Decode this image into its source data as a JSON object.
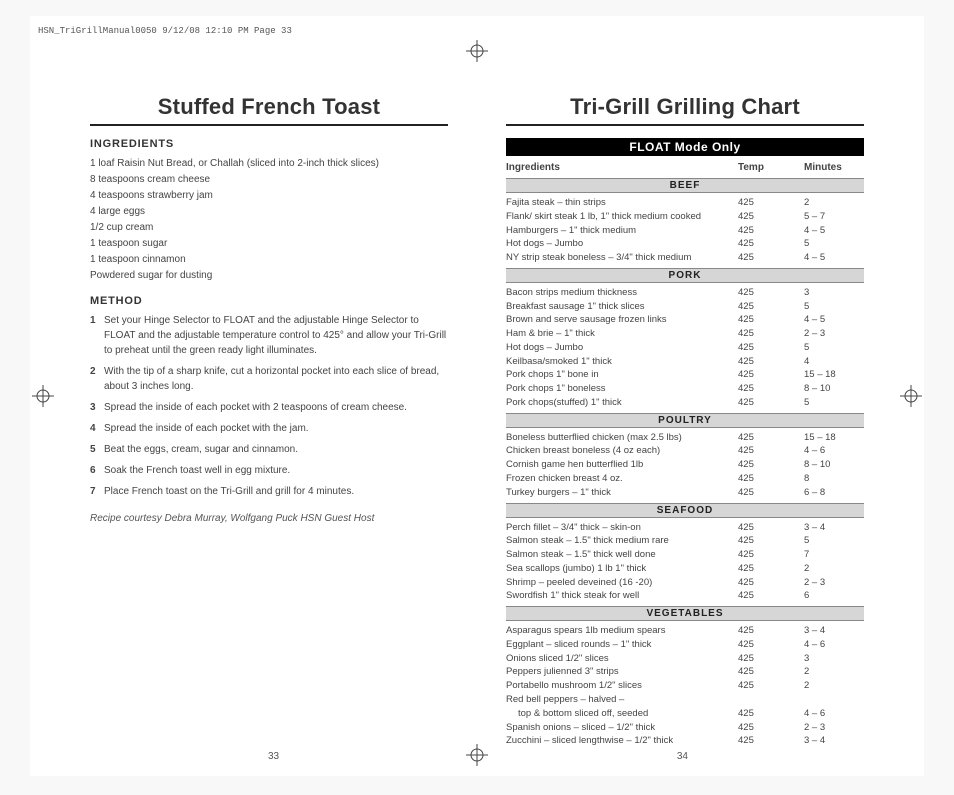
{
  "header_strip": "HSN_TriGrillManual0050  9/12/08  12:10 PM  Page 33",
  "left": {
    "title": "Stuffed French Toast",
    "ing_label": "INGREDIENTS",
    "ingredients": [
      "1 loaf Raisin Nut Bread, or Challah (sliced into 2-inch thick slices)",
      "8 teaspoons cream cheese",
      "4 teaspoons strawberry jam",
      "4 large eggs",
      "1/2 cup cream",
      "1 teaspoon sugar",
      "1 teaspoon cinnamon",
      "Powdered sugar for dusting"
    ],
    "method_label": "METHOD",
    "method": [
      "Set your Hinge Selector to FLOAT and the adjustable Hinge Selector to FLOAT and the adjustable temperature control to 425° and allow your Tri-Grill to preheat until the green ready light illuminates.",
      "With the tip of a sharp knife, cut a horizontal pocket into each slice of bread, about 3 inches long.",
      "Spread the inside of each pocket with 2 teaspoons of cream cheese.",
      "Spread the inside of each pocket with the jam.",
      "Beat the eggs, cream, sugar and cinnamon.",
      "Soak the French toast well in egg mixture.",
      "Place French toast on the Tri-Grill and grill for 4 minutes."
    ],
    "credit": "Recipe courtesy Debra Murray, Wolfgang Puck HSN Guest Host",
    "page_num": "33"
  },
  "right": {
    "title": "Tri-Grill Grilling Chart",
    "float_bar": "FLOAT Mode Only",
    "col_labels": {
      "c1": "Ingredients",
      "c2": "Temp",
      "c3": "Minutes"
    },
    "sections": [
      {
        "name": "BEEF",
        "rows": [
          {
            "n": "Fajita steak – thin strips",
            "t": "425",
            "m": "2"
          },
          {
            "n": "Flank/ skirt steak 1 lb, 1\" thick medium cooked",
            "t": "425",
            "m": "5 – 7"
          },
          {
            "n": "Hamburgers – 1\" thick  medium",
            "t": "425",
            "m": "4 – 5"
          },
          {
            "n": "Hot dogs – Jumbo",
            "t": "425",
            "m": "5"
          },
          {
            "n": "NY strip steak boneless – 3/4\" thick medium",
            "t": "425",
            "m": "4 – 5"
          }
        ]
      },
      {
        "name": "PORK",
        "rows": [
          {
            "n": "Bacon strips medium thickness",
            "t": "425",
            "m": "3"
          },
          {
            "n": "Breakfast sausage 1\" thick slices",
            "t": "425",
            "m": "5"
          },
          {
            "n": "Brown and serve sausage frozen links",
            "t": "425",
            "m": "4 – 5"
          },
          {
            "n": "Ham & brie – 1\" thick",
            "t": "425",
            "m": "2 – 3"
          },
          {
            "n": "Hot dogs – Jumbo",
            "t": "425",
            "m": "5"
          },
          {
            "n": "Keilbasa/smoked 1\" thick",
            "t": "425",
            "m": "4"
          },
          {
            "n": "Pork chops 1\" bone in",
            "t": "425",
            "m": "15 – 18"
          },
          {
            "n": "Pork chops 1\" boneless",
            "t": "425",
            "m": "8 – 10"
          },
          {
            "n": "Pork chops(stuffed) 1\" thick",
            "t": "425",
            "m": "5"
          }
        ]
      },
      {
        "name": "POULTRY",
        "rows": [
          {
            "n": "Boneless butterflied chicken (max 2.5 lbs)",
            "t": "425",
            "m": "15 – 18"
          },
          {
            "n": "Chicken breast boneless (4 oz each)",
            "t": "425",
            "m": "4 – 6"
          },
          {
            "n": "Cornish game hen butterflied 1lb",
            "t": "425",
            "m": "8 – 10"
          },
          {
            "n": "Frozen chicken breast 4 oz.",
            "t": "425",
            "m": "8"
          },
          {
            "n": "Turkey burgers – 1\" thick",
            "t": "425",
            "m": "6 – 8"
          }
        ]
      },
      {
        "name": "SEAFOOD",
        "rows": [
          {
            "n": "Perch fillet – 3/4\" thick – skin-on",
            "t": "425",
            "m": "3 – 4"
          },
          {
            "n": "Salmon steak – 1.5\" thick  medium rare",
            "t": "425",
            "m": "5"
          },
          {
            "n": "Salmon steak – 1.5\" thick  well done",
            "t": "425",
            "m": "7"
          },
          {
            "n": "Sea scallops (jumbo) 1 lb 1\" thick",
            "t": "425",
            "m": "2"
          },
          {
            "n": "Shrimp – peeled deveined (16 -20)",
            "t": "425",
            "m": "2 – 3"
          },
          {
            "n": "Swordfish 1\" thick steak for well",
            "t": "425",
            "m": "6"
          }
        ]
      },
      {
        "name": "VEGETABLES",
        "rows": [
          {
            "n": "Asparagus spears 1lb medium spears",
            "t": "425",
            "m": "3 – 4"
          },
          {
            "n": "Eggplant – sliced rounds – 1\" thick",
            "t": "425",
            "m": "4 – 6"
          },
          {
            "n": "Onions sliced 1/2\" slices",
            "t": "425",
            "m": "3"
          },
          {
            "n": "Peppers julienned 3\" strips",
            "t": "425",
            "m": "2"
          },
          {
            "n": "Portabello mushroom 1/2\" slices",
            "t": "425",
            "m": "2"
          },
          {
            "n": "Red bell peppers – halved –",
            "t": "",
            "m": ""
          },
          {
            "n": "top & bottom sliced off, seeded",
            "t": "425",
            "m": "4 – 6",
            "indent": true
          },
          {
            "n": "Spanish onions – sliced – 1/2\" thick",
            "t": "425",
            "m": "2 – 3"
          },
          {
            "n": "Zucchini – sliced lengthwise – 1/2\" thick",
            "t": "425",
            "m": "3 – 4"
          }
        ]
      }
    ],
    "page_num": "34"
  }
}
